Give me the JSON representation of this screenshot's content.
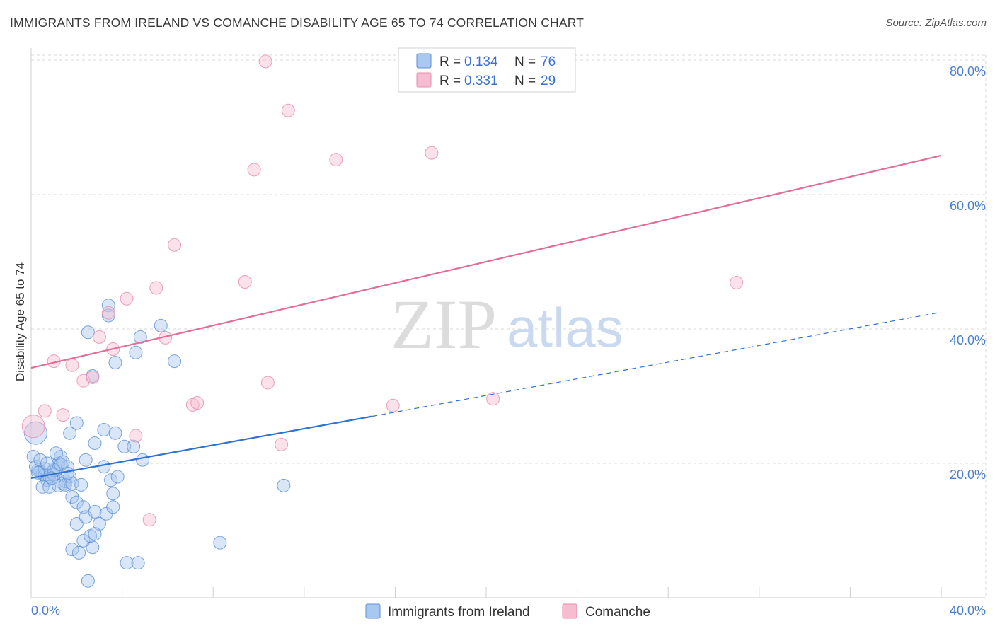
{
  "header": {
    "title": "IMMIGRANTS FROM IRELAND VS COMANCHE DISABILITY AGE 65 TO 74 CORRELATION CHART",
    "source": "Source: ZipAtlas.com"
  },
  "watermark": {
    "zip": "ZIP",
    "atlas": "atlas"
  },
  "colors": {
    "blue_fill": "#a8c8f0",
    "blue_stroke": "#5b8fd6",
    "blue_line": "#2f72d0",
    "pink_fill": "#f6bcd0",
    "pink_stroke": "#e58aab",
    "pink_line": "#e46d95",
    "grid": "#d8d8d8",
    "tick_text": "#4a7fd0"
  },
  "chart_data": {
    "type": "scatter",
    "title": "IMMIGRANTS FROM IRELAND VS COMANCHE DISABILITY AGE 65 TO 74 CORRELATION CHART",
    "xlabel": "",
    "ylabel": "Disability Age 65 to 74",
    "xlim": [
      0,
      40
    ],
    "ylim": [
      0,
      82
    ],
    "x_tick_labels": {
      "min": "0.0%",
      "max": "40.0%"
    },
    "y_ticks": [
      20,
      40,
      60,
      80
    ],
    "y_tick_labels": [
      "20.0%",
      "40.0%",
      "60.0%",
      "80.0%"
    ],
    "grid": true,
    "legend_top": [
      {
        "r_label": "R =",
        "r_value": "0.134",
        "n_label": "N =",
        "n_value": "76"
      },
      {
        "r_label": "R =",
        "r_value": "0.331",
        "n_label": "N =",
        "n_value": "29"
      }
    ],
    "series": [
      {
        "name": "Immigrants from Ireland",
        "color": "blue",
        "trend": {
          "x0": 0,
          "y0": 17.8,
          "x1": 15,
          "y1": 27.0,
          "dash_to_x": 40,
          "dash_to_y": 42.5
        },
        "points": [
          [
            0.2,
            24.5
          ],
          [
            0.1,
            21.0
          ],
          [
            0.3,
            19.0
          ],
          [
            0.4,
            18.8
          ],
          [
            0.5,
            18.5
          ],
          [
            0.6,
            18.2
          ],
          [
            0.7,
            17.5
          ],
          [
            0.8,
            18.0
          ],
          [
            0.9,
            18.6
          ],
          [
            1.0,
            18.3
          ],
          [
            1.1,
            19.0
          ],
          [
            1.2,
            20.0
          ],
          [
            1.3,
            21.0
          ],
          [
            1.4,
            17.0
          ],
          [
            1.5,
            17.3
          ],
          [
            1.6,
            19.5
          ],
          [
            1.7,
            18.0
          ],
          [
            0.5,
            16.5
          ],
          [
            0.8,
            16.5
          ],
          [
            1.2,
            16.7
          ],
          [
            1.5,
            16.8
          ],
          [
            1.8,
            17.0
          ],
          [
            2.2,
            16.8
          ],
          [
            0.2,
            19.5
          ],
          [
            0.6,
            19.2
          ],
          [
            1.0,
            19.0
          ],
          [
            1.3,
            19.8
          ],
          [
            1.8,
            15.0
          ],
          [
            2.0,
            14.2
          ],
          [
            2.3,
            13.5
          ],
          [
            2.0,
            11.0
          ],
          [
            2.4,
            12.0
          ],
          [
            2.8,
            12.8
          ],
          [
            3.0,
            11.0
          ],
          [
            3.3,
            12.5
          ],
          [
            3.6,
            13.5
          ],
          [
            1.7,
            24.5
          ],
          [
            2.0,
            26.0
          ],
          [
            2.7,
            33.0
          ],
          [
            3.2,
            25.0
          ],
          [
            3.7,
            24.5
          ],
          [
            2.4,
            20.5
          ],
          [
            2.8,
            23.0
          ],
          [
            3.2,
            19.5
          ],
          [
            3.5,
            17.5
          ],
          [
            3.8,
            18.0
          ],
          [
            3.6,
            15.5
          ],
          [
            4.1,
            22.5
          ],
          [
            4.5,
            22.5
          ],
          [
            4.9,
            20.5
          ],
          [
            2.5,
            39.5
          ],
          [
            3.4,
            43.5
          ],
          [
            3.4,
            42.0
          ],
          [
            3.7,
            35.0
          ],
          [
            4.6,
            36.5
          ],
          [
            4.8,
            38.8
          ],
          [
            5.7,
            40.5
          ],
          [
            6.3,
            35.2
          ],
          [
            11.1,
            16.7
          ],
          [
            8.3,
            8.2
          ],
          [
            2.7,
            7.5
          ],
          [
            1.8,
            7.2
          ],
          [
            2.1,
            6.7
          ],
          [
            2.3,
            8.5
          ],
          [
            2.6,
            9.2
          ],
          [
            2.8,
            9.5
          ],
          [
            4.2,
            5.2
          ],
          [
            4.7,
            5.2
          ],
          [
            2.5,
            2.5
          ],
          [
            0.4,
            20.5
          ],
          [
            1.1,
            21.5
          ],
          [
            1.6,
            18.5
          ],
          [
            0.9,
            17.8
          ],
          [
            0.3,
            18.6
          ],
          [
            1.4,
            20.2
          ],
          [
            0.7,
            20.0
          ]
        ]
      },
      {
        "name": "Comanche",
        "color": "pink",
        "trend": {
          "x0": 0,
          "y0": 34.2,
          "x1": 40,
          "y1": 65.8
        },
        "points": [
          [
            0.1,
            25.5
          ],
          [
            0.6,
            27.8
          ],
          [
            1.0,
            35.2
          ],
          [
            1.4,
            27.2
          ],
          [
            1.8,
            34.6
          ],
          [
            2.3,
            32.3
          ],
          [
            2.7,
            32.8
          ],
          [
            3.0,
            38.8
          ],
          [
            3.4,
            42.4
          ],
          [
            3.6,
            37.0
          ],
          [
            4.2,
            44.5
          ],
          [
            4.6,
            24.1
          ],
          [
            5.2,
            11.6
          ],
          [
            5.5,
            46.1
          ],
          [
            5.9,
            38.7
          ],
          [
            6.3,
            52.5
          ],
          [
            7.1,
            28.7
          ],
          [
            7.3,
            29.0
          ],
          [
            9.4,
            47.0
          ],
          [
            9.8,
            63.7
          ],
          [
            10.3,
            79.8
          ],
          [
            10.4,
            32.0
          ],
          [
            11.0,
            22.8
          ],
          [
            11.3,
            72.5
          ],
          [
            13.4,
            65.2
          ],
          [
            15.9,
            28.6
          ],
          [
            17.6,
            66.2
          ],
          [
            20.3,
            29.6
          ],
          [
            31.0,
            46.9
          ]
        ]
      }
    ]
  },
  "bottom_legend": {
    "items": [
      {
        "label": "Immigrants from Ireland",
        "color": "blue"
      },
      {
        "label": "Comanche",
        "color": "pink"
      }
    ]
  }
}
